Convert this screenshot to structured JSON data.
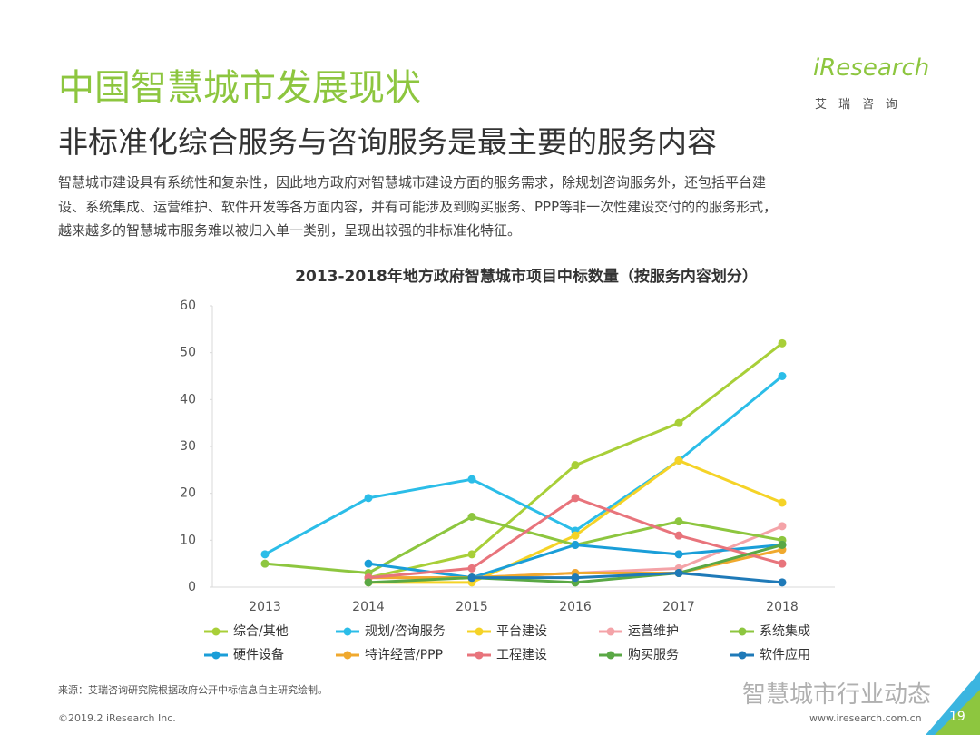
{
  "header": {
    "title": "中国智慧城市发展现状",
    "subtitle": "非标准化综合服务与咨询服务是最主要的服务内容"
  },
  "paragraph": [
    "智慧城市建设具有系统性和复杂性，因此地方政府对智慧城市建设方面的服务需求，除规划咨询服务外，还包括平台建",
    "设、系统集成、运营维护、软件开发等各方面内容，并有可能涉及到购买服务、PPP等非一次性建设交付的的服务形式，",
    "越来越多的智慧城市服务难以被归入单一类别，呈现出较强的非标准化特征。"
  ],
  "logo": {
    "name": "iResearch",
    "subtitle": "艾瑞咨询"
  },
  "chart_data": {
    "type": "line",
    "title": "2013-2018年地方政府智慧城市项目中标数量（按服务内容划分）",
    "categories": [
      "2013",
      "2014",
      "2015",
      "2016",
      "2017",
      "2018"
    ],
    "ylim": [
      0,
      60
    ],
    "yticks": [
      0,
      10,
      20,
      30,
      40,
      50,
      60
    ],
    "series": [
      {
        "name": "综合/其他",
        "color": "#a8cf38",
        "values": [
          null,
          2,
          7,
          26,
          35,
          52
        ]
      },
      {
        "name": "规划/咨询服务",
        "color": "#2bbde8",
        "values": [
          7,
          19,
          23,
          12,
          27,
          45
        ]
      },
      {
        "name": "平台建设",
        "color": "#f5d327",
        "values": [
          null,
          1,
          1,
          11,
          27,
          18
        ]
      },
      {
        "name": "运营维护",
        "color": "#f4a3a8",
        "values": [
          null,
          2,
          2,
          3,
          4,
          13
        ]
      },
      {
        "name": "系统集成",
        "color": "#8dc63f",
        "values": [
          5,
          3,
          15,
          9,
          14,
          10
        ]
      },
      {
        "name": "硬件设备",
        "color": "#1a9ed8",
        "values": [
          null,
          5,
          2,
          9,
          7,
          9
        ]
      },
      {
        "name": "特许经营/PPP",
        "color": "#f0a92e",
        "values": [
          null,
          2,
          2,
          3,
          3,
          8
        ]
      },
      {
        "name": "工程建设",
        "color": "#e8747c",
        "values": [
          null,
          2,
          4,
          19,
          11,
          5
        ]
      },
      {
        "name": "购买服务",
        "color": "#5aa845",
        "values": [
          null,
          1,
          2,
          1,
          3,
          9
        ]
      },
      {
        "name": "软件应用",
        "color": "#1f7ab8",
        "values": [
          null,
          null,
          2,
          2,
          3,
          1
        ]
      }
    ]
  },
  "footer": {
    "source": "来源：艾瑞咨询研究院根据政府公开中标信息自主研究绘制。",
    "copyright": "©2019.2 iResearch Inc.",
    "url": "www.iresearch.com.cn",
    "watermark": "智慧城市行业动态",
    "page": "19"
  }
}
